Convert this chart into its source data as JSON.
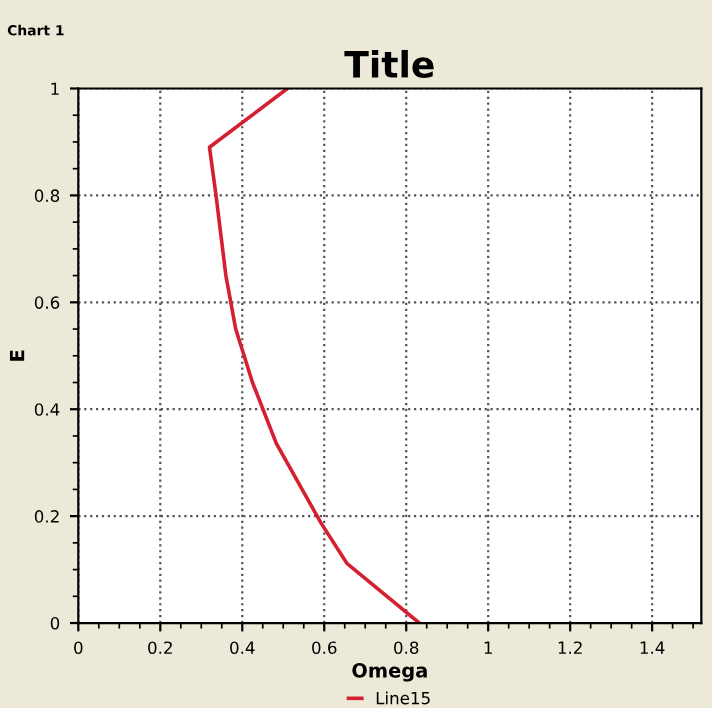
{
  "chart_data": {
    "type": "line",
    "title": "Title",
    "xlabel": "Omega",
    "ylabel": "E",
    "annotations": [
      "Chart 1"
    ],
    "series": [
      {
        "name": "Line15",
        "color": "#d42030",
        "x": [
          0.51,
          0.32,
          0.336,
          0.36,
          0.384,
          0.425,
          0.483,
          0.593,
          0.656,
          0.832
        ],
        "values": [
          1.0,
          0.89,
          0.8,
          0.65,
          0.55,
          0.45,
          0.336,
          0.186,
          0.111,
          0.0
        ]
      }
    ],
    "xlim": [
      0,
      1.52
    ],
    "ylim": [
      0,
      1
    ],
    "xticks": [
      0,
      0.2,
      0.4,
      0.6,
      0.8,
      1,
      1.2,
      1.4
    ],
    "yticks": [
      0,
      0.2,
      0.4,
      0.6,
      0.8,
      1
    ],
    "grid": true,
    "legend": "bottom",
    "marker": "none",
    "line_style": "solid"
  }
}
